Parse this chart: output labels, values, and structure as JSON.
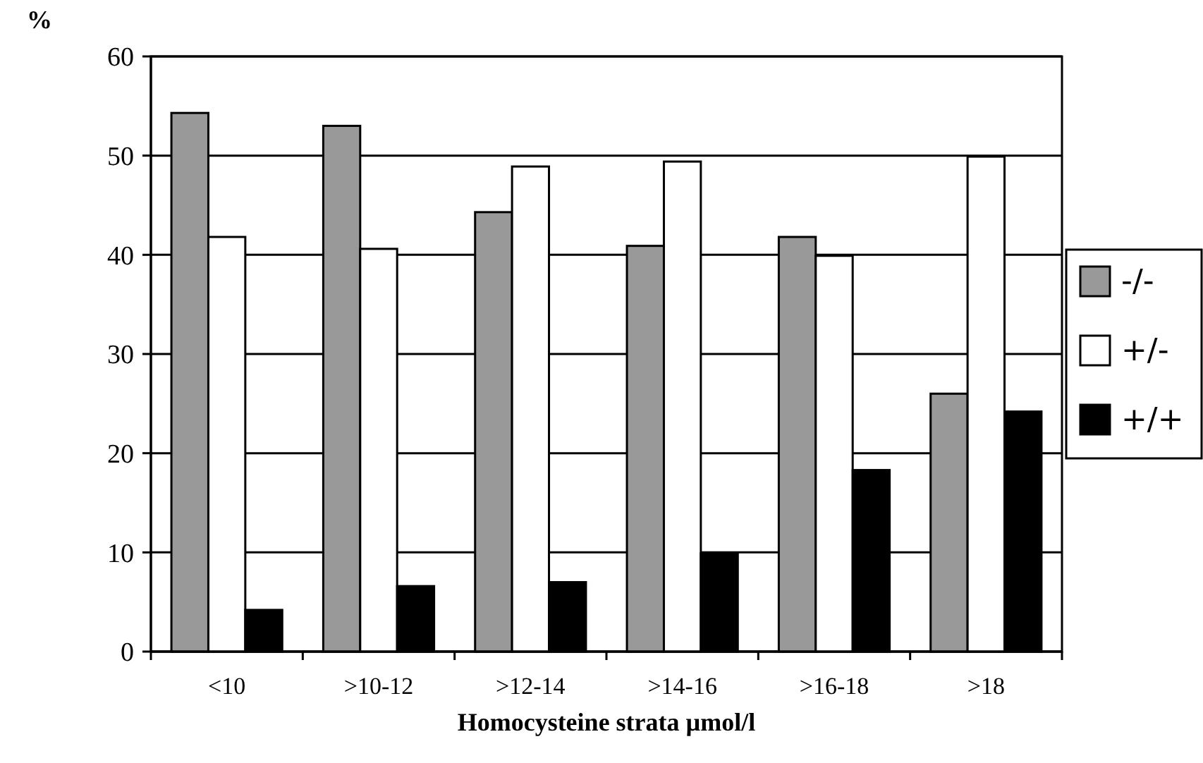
{
  "chart_data": {
    "type": "bar",
    "ylabel": "%",
    "xlabel": "Homocysteine strata µmol/l",
    "categories": [
      "<10",
      ">10-12",
      ">12-14",
      ">14-16",
      ">16-18",
      ">18"
    ],
    "series": [
      {
        "name": "-/-",
        "color": "#999999",
        "values": [
          54.3,
          53.0,
          44.3,
          40.9,
          41.8,
          26.0
        ]
      },
      {
        "name": "+/-",
        "color": "#ffffff",
        "values": [
          41.8,
          40.6,
          48.9,
          49.4,
          39.9,
          49.9
        ]
      },
      {
        "name": "+/+",
        "color": "#000000",
        "values": [
          4.2,
          6.6,
          7.0,
          9.9,
          18.3,
          24.2
        ]
      }
    ],
    "ylim": [
      0,
      60
    ],
    "yticks": [
      0,
      10,
      20,
      30,
      40,
      50,
      60
    ],
    "grid": "y",
    "legend": "right"
  }
}
